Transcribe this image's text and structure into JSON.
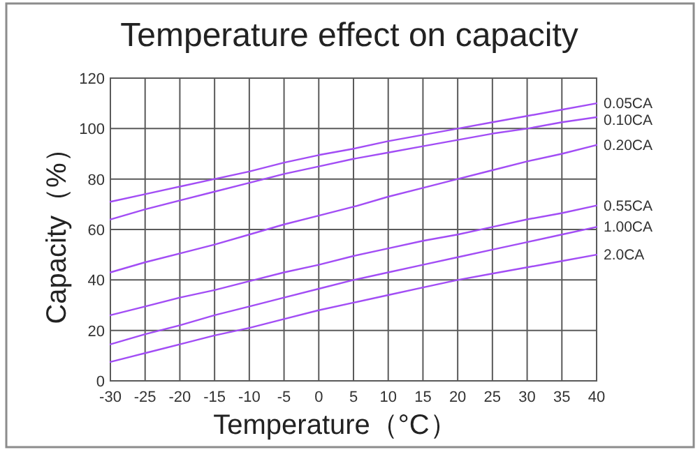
{
  "chart_data": {
    "type": "line",
    "title": "Temperature effect on capacity",
    "xlabel": "Temperature（°C）",
    "ylabel": "Capacity（%）",
    "x": [
      -30,
      -25,
      -20,
      -15,
      -10,
      -5,
      0,
      5,
      10,
      15,
      20,
      25,
      30,
      35,
      40
    ],
    "xlim": [
      -30,
      40
    ],
    "ylim": [
      0,
      120
    ],
    "xticks": [
      -30,
      -25,
      -20,
      -15,
      -10,
      -5,
      0,
      5,
      10,
      15,
      20,
      25,
      30,
      35,
      40
    ],
    "yticks": [
      0,
      20,
      40,
      60,
      80,
      100,
      120
    ],
    "grid": true,
    "series": [
      {
        "name": "0.05CA",
        "color": "#a24df5",
        "values": [
          71,
          74,
          77,
          80,
          83,
          86.5,
          89.5,
          92,
          95,
          97.5,
          100,
          102.5,
          105,
          107.5,
          110
        ]
      },
      {
        "name": "0.10CA",
        "color": "#a24df5",
        "values": [
          64,
          68,
          71.5,
          75,
          78.5,
          82,
          85,
          88,
          90.5,
          93,
          95.5,
          98,
          100,
          102.5,
          104.5
        ]
      },
      {
        "name": "0.20CA",
        "color": "#a24df5",
        "values": [
          43,
          47,
          50.5,
          54,
          58,
          62,
          65.5,
          69,
          73,
          76.5,
          80,
          83.5,
          87,
          90,
          93.5
        ]
      },
      {
        "name": "0.55CA",
        "color": "#a24df5",
        "values": [
          26,
          29.5,
          33,
          36,
          39.5,
          43,
          46,
          49.5,
          52.5,
          55.5,
          58,
          61,
          64,
          66.5,
          69.5
        ]
      },
      {
        "name": "1.00CA",
        "color": "#a24df5",
        "values": [
          14.5,
          18.5,
          22,
          26,
          29.5,
          33,
          36.5,
          40,
          43,
          46,
          49,
          52,
          55,
          58,
          61
        ]
      },
      {
        "name": "2.0CA",
        "color": "#a24df5",
        "values": [
          7.5,
          11,
          14.5,
          18,
          21,
          24.5,
          28,
          31,
          34,
          37,
          40,
          42.5,
          45,
          47.5,
          50
        ]
      }
    ]
  }
}
